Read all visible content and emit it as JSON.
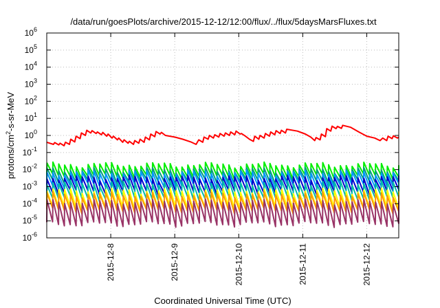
{
  "chart_data": {
    "type": "line",
    "title": "/data/run/goesPlots/archive/2015-12-12/12:00/flux/../flux/5daysMarsFluxes.txt",
    "xlabel": "Coordinated Universal Time (UTC)",
    "ylabel": {
      "base": "protons/cm",
      "sup": "2",
      "rest": "-s-sr-MeV"
    },
    "y_scale": "log",
    "ylim": [
      1e-06,
      1000000.0
    ],
    "y_ticks": [
      {
        "value": 1e-06,
        "base": "10",
        "exp": "-6"
      },
      {
        "value": 1e-05,
        "base": "10",
        "exp": "-5"
      },
      {
        "value": 0.0001,
        "base": "10",
        "exp": "-4"
      },
      {
        "value": 0.001,
        "base": "10",
        "exp": "-3"
      },
      {
        "value": 0.01,
        "base": "10",
        "exp": "-2"
      },
      {
        "value": 0.1,
        "base": "10",
        "exp": "-1"
      },
      {
        "value": 1.0,
        "base": "10",
        "exp": "0"
      },
      {
        "value": 10.0,
        "base": "10",
        "exp": "1"
      },
      {
        "value": 100.0,
        "base": "10",
        "exp": "2"
      },
      {
        "value": 1000.0,
        "base": "10",
        "exp": "3"
      },
      {
        "value": 10000.0,
        "base": "10",
        "exp": "4"
      },
      {
        "value": 100000.0,
        "base": "10",
        "exp": "5"
      },
      {
        "value": 1000000.0,
        "base": "10",
        "exp": "6"
      }
    ],
    "xlim": [
      "2015-12-07T00:00",
      "2015-12-12T12:00"
    ],
    "x_ticks": [
      {
        "value": "2015-12-08T00:00",
        "label": "2015-12-8"
      },
      {
        "value": "2015-12-09T00:00",
        "label": "2015-12-9"
      },
      {
        "value": "2015-12-10T00:00",
        "label": "2015-12-10"
      },
      {
        "value": "2015-12-11T00:00",
        "label": "2015-12-11"
      },
      {
        "value": "2015-12-12T00:00",
        "label": "2015-12-12"
      }
    ],
    "grid": true,
    "series": [
      {
        "color": "#ff0000",
        "points": [
          [
            "2015-12-07T00:00",
            0.4
          ],
          [
            "2015-12-07T02:30",
            0.3
          ],
          [
            "2015-12-07T03:00",
            0.38
          ],
          [
            "2015-12-07T04:30",
            0.28
          ],
          [
            "2015-12-07T05:00",
            0.35
          ],
          [
            "2015-12-07T06:30",
            0.25
          ],
          [
            "2015-12-07T07:00",
            0.4
          ],
          [
            "2015-12-07T08:30",
            0.3
          ],
          [
            "2015-12-07T09:00",
            0.6
          ],
          [
            "2015-12-07T10:30",
            0.42
          ],
          [
            "2015-12-07T11:00",
            0.9
          ],
          [
            "2015-12-07T12:30",
            0.65
          ],
          [
            "2015-12-07T13:00",
            1.4
          ],
          [
            "2015-12-07T14:30",
            1.0
          ],
          [
            "2015-12-07T15:00",
            2.0
          ],
          [
            "2015-12-07T16:30",
            1.4
          ],
          [
            "2015-12-07T17:00",
            1.9
          ],
          [
            "2015-12-07T18:30",
            1.3
          ],
          [
            "2015-12-07T19:00",
            1.6
          ],
          [
            "2015-12-07T20:30",
            1.1
          ],
          [
            "2015-12-07T21:00",
            1.5
          ],
          [
            "2015-12-07T22:30",
            0.9
          ],
          [
            "2015-12-07T23:00",
            1.2
          ],
          [
            "2015-12-08T00:30",
            0.7
          ],
          [
            "2015-12-08T01:00",
            0.9
          ],
          [
            "2015-12-08T02:30",
            0.55
          ],
          [
            "2015-12-08T03:00",
            0.7
          ],
          [
            "2015-12-08T04:30",
            0.4
          ],
          [
            "2015-12-08T05:00",
            0.55
          ],
          [
            "2015-12-08T06:30",
            0.35
          ],
          [
            "2015-12-08T07:00",
            0.45
          ],
          [
            "2015-12-08T08:30",
            0.3
          ],
          [
            "2015-12-08T09:00",
            0.5
          ],
          [
            "2015-12-08T10:30",
            0.35
          ],
          [
            "2015-12-08T11:00",
            0.6
          ],
          [
            "2015-12-08T12:30",
            0.4
          ],
          [
            "2015-12-08T13:00",
            0.8
          ],
          [
            "2015-12-08T14:30",
            0.55
          ],
          [
            "2015-12-08T15:00",
            1.2
          ],
          [
            "2015-12-08T16:30",
            0.85
          ],
          [
            "2015-12-08T17:00",
            1.7
          ],
          [
            "2015-12-08T18:30",
            1.2
          ],
          [
            "2015-12-08T19:00",
            1.5
          ],
          [
            "2015-12-08T20:30",
            1.0
          ],
          [
            "2015-12-09T00:00",
            0.8
          ],
          [
            "2015-12-09T03:00",
            0.6
          ],
          [
            "2015-12-09T06:00",
            0.42
          ],
          [
            "2015-12-09T08:00",
            0.3
          ],
          [
            "2015-12-09T09:00",
            0.55
          ],
          [
            "2015-12-09T10:30",
            0.4
          ],
          [
            "2015-12-09T11:00",
            0.8
          ],
          [
            "2015-12-09T12:30",
            0.6
          ],
          [
            "2015-12-09T13:00",
            1.0
          ],
          [
            "2015-12-09T14:30",
            0.7
          ],
          [
            "2015-12-09T15:00",
            1.1
          ],
          [
            "2015-12-09T16:30",
            0.8
          ],
          [
            "2015-12-09T17:00",
            1.3
          ],
          [
            "2015-12-09T18:30",
            0.9
          ],
          [
            "2015-12-09T19:00",
            1.4
          ],
          [
            "2015-12-09T20:30",
            1.0
          ],
          [
            "2015-12-09T21:00",
            1.6
          ],
          [
            "2015-12-09T22:30",
            1.1
          ],
          [
            "2015-12-09T23:00",
            1.8
          ],
          [
            "2015-12-10T00:30",
            1.2
          ],
          [
            "2015-12-10T01:00",
            1.3
          ],
          [
            "2015-12-10T02:30",
            0.9
          ],
          [
            "2015-12-10T04:00",
            0.6
          ],
          [
            "2015-12-10T05:30",
            0.45
          ],
          [
            "2015-12-10T06:00",
            0.9
          ],
          [
            "2015-12-10T07:30",
            0.6
          ],
          [
            "2015-12-10T08:00",
            1.0
          ],
          [
            "2015-12-10T09:30",
            0.7
          ],
          [
            "2015-12-10T10:00",
            1.3
          ],
          [
            "2015-12-10T11:30",
            0.9
          ],
          [
            "2015-12-10T12:00",
            1.6
          ],
          [
            "2015-12-10T13:30",
            1.1
          ],
          [
            "2015-12-10T14:00",
            1.9
          ],
          [
            "2015-12-10T15:30",
            1.3
          ],
          [
            "2015-12-10T16:00",
            2.0
          ],
          [
            "2015-12-10T17:30",
            1.4
          ],
          [
            "2015-12-10T18:00",
            2.3
          ],
          [
            "2015-12-10T22:00",
            1.8
          ],
          [
            "2015-12-11T01:00",
            1.2
          ],
          [
            "2015-12-11T03:00",
            0.8
          ],
          [
            "2015-12-11T04:30",
            0.5
          ],
          [
            "2015-12-11T05:00",
            0.75
          ],
          [
            "2015-12-11T06:30",
            0.55
          ],
          [
            "2015-12-11T07:00",
            1.2
          ],
          [
            "2015-12-11T08:30",
            0.85
          ],
          [
            "2015-12-11T09:00",
            2.5
          ],
          [
            "2015-12-11T10:30",
            1.8
          ],
          [
            "2015-12-11T11:00",
            3.5
          ],
          [
            "2015-12-11T12:30",
            2.5
          ],
          [
            "2015-12-11T13:00",
            3.4
          ],
          [
            "2015-12-11T14:30",
            2.6
          ],
          [
            "2015-12-11T15:00",
            3.9
          ],
          [
            "2015-12-11T18:00",
            3.0
          ],
          [
            "2015-12-11T21:00",
            1.6
          ],
          [
            "2015-12-12T00:00",
            0.9
          ],
          [
            "2015-12-12T03:00",
            0.7
          ],
          [
            "2015-12-12T05:00",
            0.5
          ],
          [
            "2015-12-12T06:00",
            0.7
          ],
          [
            "2015-12-12T07:30",
            0.5
          ],
          [
            "2015-12-12T08:00",
            0.9
          ],
          [
            "2015-12-12T09:30",
            0.65
          ],
          [
            "2015-12-12T10:00",
            0.95
          ],
          [
            "2015-12-12T11:30",
            0.7
          ],
          [
            "2015-12-12T12:00",
            0.8
          ]
        ]
      },
      {
        "color": "#00ee00",
        "base": 0.009,
        "amp": 2.2,
        "period_h": 2.2
      },
      {
        "color": "#009f7a",
        "base": 0.0045,
        "amp": 2.2,
        "period_h": 2.2
      },
      {
        "color": "#0099ff",
        "base": 0.0028,
        "amp": 2.4,
        "period_h": 2.2
      },
      {
        "color": "#0000cc",
        "base": 0.0013,
        "amp": 2.6,
        "period_h": 2.2
      },
      {
        "color": "#00bbaa",
        "base": 0.0006,
        "amp": 2.8,
        "period_h": 2.2
      },
      {
        "color": "#ffff00",
        "base": 0.00018,
        "amp": 3.2,
        "period_h": 2.2
      },
      {
        "color": "#ff9900",
        "base": 0.00012,
        "amp": 3.0,
        "period_h": 2.2
      },
      {
        "color": "#993366",
        "base": 3e-05,
        "amp": 4.5,
        "period_h": 2.2
      }
    ]
  }
}
